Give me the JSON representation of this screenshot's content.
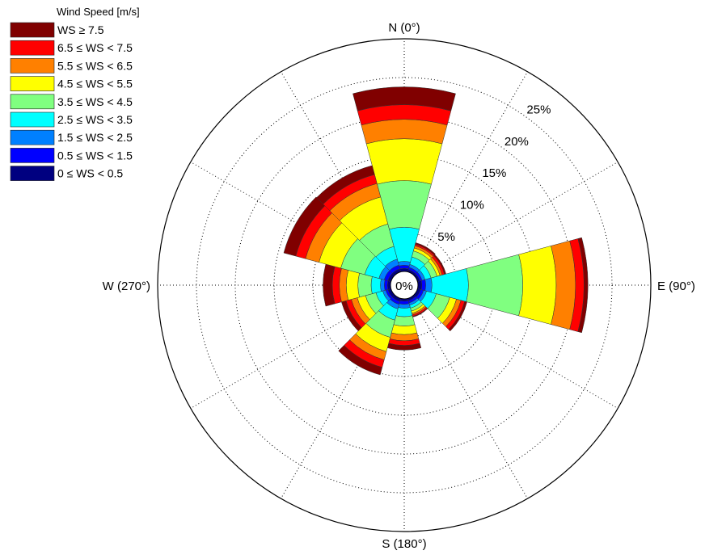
{
  "chart_data": {
    "type": "wind-rose",
    "legend": {
      "title": "Wind Speed [m/s]",
      "placement": "top-left"
    },
    "bins": [
      {
        "label": "0 ≤ WS < 0.5",
        "color": "#000080"
      },
      {
        "label": "0.5 ≤ WS < 1.5",
        "color": "#0000ff"
      },
      {
        "label": "1.5 ≤ WS < 2.5",
        "color": "#0080ff"
      },
      {
        "label": "2.5 ≤ WS < 3.5",
        "color": "#00ffff"
      },
      {
        "label": "3.5 ≤ WS < 4.5",
        "color": "#80ff80"
      },
      {
        "label": "4.5 ≤ WS < 5.5",
        "color": "#ffff00"
      },
      {
        "label": "5.5 ≤ WS < 6.5",
        "color": "#ff8000"
      },
      {
        "label": "6.5 ≤ WS < 7.5",
        "color": "#ff0000"
      },
      {
        "label": "WS ≥ 7.5",
        "color": "#800000"
      }
    ],
    "direction_labels": {
      "north": "N (0°)",
      "east": "E (90°)",
      "south": "S (180°)",
      "west": "W (270°)"
    },
    "center_label": "0%",
    "radial_ticks": [
      {
        "value": 5,
        "label": "5%"
      },
      {
        "value": 10,
        "label": "10%"
      },
      {
        "value": 15,
        "label": "15%"
      },
      {
        "value": 20,
        "label": "20%"
      },
      {
        "value": 25,
        "label": "25%"
      }
    ],
    "r_max": 30,
    "sector_width_deg": 30,
    "grid": true,
    "sectors": [
      {
        "direction": 0,
        "cumulative": [
          0.4,
          0.8,
          1.3,
          5.7,
          11.7,
          17.1,
          19.6,
          21.5,
          23.8
        ]
      },
      {
        "direction": 30,
        "cumulative": [
          0.3,
          0.6,
          1.0,
          2.0,
          2.8,
          3.2,
          3.5,
          3.7,
          3.9
        ]
      },
      {
        "direction": 60,
        "cumulative": [
          0.3,
          0.6,
          1.0,
          1.8,
          2.6,
          3.0,
          3.3,
          3.6,
          3.8
        ]
      },
      {
        "direction": 90,
        "cumulative": [
          0.5,
          1.0,
          1.8,
          6.5,
          13.5,
          17.8,
          20.3,
          21.4,
          21.9
        ]
      },
      {
        "direction": 120,
        "cumulative": [
          0.4,
          0.8,
          1.2,
          2.5,
          4.3,
          5.2,
          5.8,
          6.3,
          6.6
        ]
      },
      {
        "direction": 150,
        "cumulative": [
          0.3,
          0.6,
          0.9,
          1.3,
          1.7,
          2.0,
          2.2,
          2.4,
          2.5
        ]
      },
      {
        "direction": 180,
        "cumulative": [
          0.3,
          0.7,
          1.2,
          2.3,
          3.5,
          4.6,
          5.4,
          6.0,
          6.6
        ]
      },
      {
        "direction": 210,
        "cumulative": [
          0.4,
          0.8,
          1.4,
          2.9,
          5.2,
          7.1,
          8.2,
          9.2,
          10.2
        ]
      },
      {
        "direction": 240,
        "cumulative": [
          0.4,
          0.7,
          1.1,
          2.0,
          3.4,
          4.5,
          5.3,
          6.0,
          6.6
        ]
      },
      {
        "direction": 270,
        "cumulative": [
          0.4,
          0.8,
          1.3,
          2.5,
          4.2,
          5.7,
          6.6,
          7.5,
          8.7
        ]
      },
      {
        "direction": 300,
        "cumulative": [
          0.4,
          0.9,
          1.6,
          3.5,
          6.7,
          9.6,
          11.4,
          12.7,
          14.3
        ]
      },
      {
        "direction": 330,
        "cumulative": [
          0.4,
          0.9,
          1.7,
          3.4,
          6.4,
          10.0,
          11.8,
          13.0,
          14.2
        ]
      }
    ]
  }
}
